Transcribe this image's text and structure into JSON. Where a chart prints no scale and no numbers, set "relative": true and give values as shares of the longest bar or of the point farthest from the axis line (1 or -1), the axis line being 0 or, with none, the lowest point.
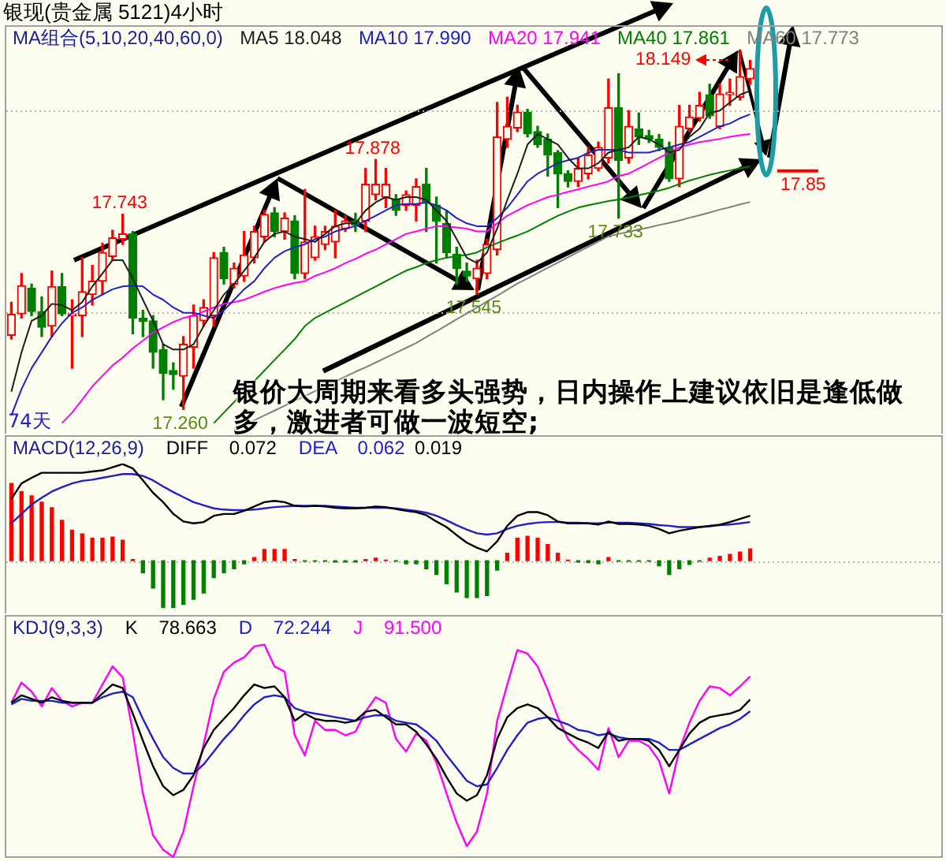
{
  "chart_data": [
    {
      "type": "candlestick",
      "title": "银现(贵金属 5121)4小时",
      "legend_title": "MA组合(5,10,20,40,60,0)",
      "legend": "top",
      "categories": [
        null,
        null,
        null,
        null,
        null,
        null,
        null,
        null,
        null,
        null,
        null,
        null,
        null,
        null,
        null,
        null,
        null,
        null,
        null,
        null,
        null,
        null,
        null,
        null,
        null,
        null,
        null,
        null,
        null,
        null,
        null,
        null,
        null,
        null,
        null,
        null,
        null,
        null,
        null,
        null,
        null,
        null,
        null,
        null,
        null,
        null,
        null,
        null,
        null,
        null,
        null,
        null,
        null,
        null,
        null,
        null,
        null,
        null,
        null,
        null,
        null,
        null,
        null,
        null,
        null,
        null,
        null,
        null,
        null,
        null,
        null,
        null,
        null,
        null
      ],
      "ohlc": [
        [
          17.443,
          17.525,
          17.434,
          17.495
        ],
        [
          17.496,
          17.596,
          17.486,
          17.566
        ],
        [
          17.56,
          17.57,
          17.492,
          17.502
        ],
        [
          17.502,
          17.538,
          17.44,
          17.463
        ],
        [
          17.466,
          17.602,
          17.44,
          17.564
        ],
        [
          17.564,
          17.596,
          17.492,
          17.496
        ],
        [
          17.492,
          17.531,
          17.362,
          17.496
        ],
        [
          17.492,
          17.635,
          17.44,
          17.551
        ],
        [
          17.544,
          17.616,
          17.518,
          17.577
        ],
        [
          17.577,
          17.671,
          17.544,
          17.648
        ],
        [
          17.638,
          17.703,
          17.629,
          17.684
        ],
        [
          17.681,
          17.743,
          17.668,
          17.694
        ],
        [
          17.694,
          17.7,
          17.447,
          17.486
        ],
        [
          17.486,
          17.505,
          17.44,
          17.477
        ],
        [
          17.479,
          17.492,
          17.362,
          17.401
        ],
        [
          17.408,
          17.421,
          17.284,
          17.349
        ],
        [
          17.356,
          17.375,
          17.31,
          17.346
        ],
        [
          17.342,
          17.44,
          17.26,
          17.421
        ],
        [
          17.414,
          17.518,
          17.362,
          17.492
        ],
        [
          17.479,
          17.531,
          17.466,
          17.512
        ],
        [
          17.492,
          17.648,
          17.466,
          17.635
        ],
        [
          17.648,
          17.661,
          17.57,
          17.583
        ],
        [
          17.57,
          17.622,
          17.56,
          17.609
        ],
        [
          17.59,
          17.7,
          17.577,
          17.642
        ],
        [
          17.635,
          17.713,
          17.622,
          17.7
        ],
        [
          17.687,
          17.752,
          17.674,
          17.742
        ],
        [
          17.746,
          17.759,
          17.687,
          17.7
        ],
        [
          17.7,
          17.746,
          17.681,
          17.733
        ],
        [
          17.726,
          17.739,
          17.583,
          17.596
        ],
        [
          17.596,
          17.804,
          17.583,
          17.674
        ],
        [
          17.635,
          17.713,
          17.629,
          17.687
        ],
        [
          17.668,
          17.713,
          17.655,
          17.7
        ],
        [
          17.674,
          17.752,
          17.635,
          17.713
        ],
        [
          17.707,
          17.739,
          17.7,
          17.726
        ],
        [
          17.726,
          17.745,
          17.7,
          17.716
        ],
        [
          17.726,
          17.856,
          17.7,
          17.817
        ],
        [
          17.791,
          17.878,
          17.778,
          17.817
        ],
        [
          17.785,
          17.856,
          17.759,
          17.817
        ],
        [
          17.778,
          17.791,
          17.74,
          17.752
        ],
        [
          17.765,
          17.8,
          17.752,
          17.791
        ],
        [
          17.765,
          17.83,
          17.726,
          17.811
        ],
        [
          17.817,
          17.856,
          17.7,
          17.772
        ],
        [
          17.765,
          17.785,
          17.622,
          17.726
        ],
        [
          17.72,
          17.752,
          17.635,
          17.648
        ],
        [
          17.644,
          17.661,
          17.57,
          17.609
        ],
        [
          17.602,
          17.622,
          17.577,
          17.59
        ],
        [
          17.583,
          17.629,
          17.545,
          17.609
        ],
        [
          17.596,
          17.681,
          17.583,
          17.668
        ],
        [
          17.655,
          18.019,
          17.642,
          17.934
        ],
        [
          17.928,
          18.032,
          17.908,
          17.96
        ],
        [
          17.956,
          18.012,
          17.947,
          17.995
        ],
        [
          17.995,
          18.002,
          17.934,
          17.941
        ],
        [
          17.947,
          17.96,
          17.908,
          17.915
        ],
        [
          17.928,
          17.941,
          17.837,
          17.889
        ],
        [
          17.895,
          17.9,
          17.759,
          17.843
        ],
        [
          17.843,
          17.85,
          17.81,
          17.824
        ],
        [
          17.824,
          17.882,
          17.811,
          17.856
        ],
        [
          17.843,
          17.908,
          17.83,
          17.889
        ],
        [
          17.856,
          17.921,
          17.85,
          17.908
        ],
        [
          17.882,
          18.077,
          17.869,
          18.006
        ],
        [
          18.006,
          18.09,
          17.733,
          17.876
        ],
        [
          17.882,
          17.999,
          17.869,
          17.96
        ],
        [
          17.954,
          17.993,
          17.915,
          17.934
        ],
        [
          17.937,
          17.95,
          17.92,
          17.928
        ],
        [
          17.928,
          17.94,
          17.9,
          17.908
        ],
        [
          17.908,
          17.921,
          17.824,
          17.83
        ],
        [
          17.83,
          18.012,
          17.811,
          17.96
        ],
        [
          17.954,
          18.012,
          17.947,
          17.983
        ],
        [
          17.98,
          18.044,
          17.973,
          18.012
        ],
        [
          18.038,
          18.064,
          17.98,
          17.986
        ],
        [
          17.96,
          18.064,
          17.954,
          18.04
        ],
        [
          18.038,
          18.077,
          18.012,
          18.044
        ],
        [
          18.032,
          18.149,
          18.025,
          18.083
        ],
        [
          18.077,
          18.123,
          18.064,
          18.103
        ]
      ],
      "colors": [
        "#ff0000",
        "#ff0000",
        "#008000",
        "#008000",
        "#ff0000",
        "#008000",
        "#ff0000",
        "#ff0000",
        "#ff0000",
        "#ff0000",
        "#ff0000",
        "#ff0000",
        "#008000",
        "#008000",
        "#008000",
        "#008000",
        "#008000",
        "#ff0000",
        "#ff0000",
        "#ff0000",
        "#ff0000",
        "#008000",
        "#ff0000",
        "#ff0000",
        "#ff0000",
        "#ff0000",
        "#008000",
        "#ff0000",
        "#008000",
        "#ff0000",
        "#ff0000",
        "#ff0000",
        "#ff0000",
        "#ff0000",
        "#008000",
        "#ff0000",
        "#ff0000",
        "#ff0000",
        "#008000",
        "#ff0000",
        "#ff0000",
        "#008000",
        "#008000",
        "#008000",
        "#008000",
        "#008000",
        "#ff0000",
        "#ff0000",
        "#ff0000",
        "#ff0000",
        "#ff0000",
        "#008000",
        "#008000",
        "#008000",
        "#008000",
        "#008000",
        "#ff0000",
        "#ff0000",
        "#ff0000",
        "#ff0000",
        "#008000",
        "#ff0000",
        "#008000",
        "#008000",
        "#008000",
        "#008000",
        "#ff0000",
        "#ff0000",
        "#ff0000",
        "#008000",
        "#ff0000",
        "#ff0000",
        "#ff0000",
        "#ff0000"
      ],
      "series": [
        {
          "name": "MA5 18.048",
          "type": "line",
          "color": "#1e1e1e",
          "values": [
            17.304,
            17.401,
            17.479,
            17.492,
            17.521,
            17.518,
            17.505,
            17.525,
            17.564,
            17.596,
            17.629,
            17.629,
            17.583,
            17.531,
            17.479,
            17.421,
            17.408,
            17.408,
            17.421,
            17.466,
            17.505,
            17.544,
            17.57,
            17.603,
            17.635,
            17.674,
            17.694,
            17.7,
            17.687,
            17.681,
            17.674,
            17.694,
            17.713,
            17.72,
            17.72,
            17.752,
            17.772,
            17.785,
            17.778,
            17.785,
            17.785,
            17.778,
            17.752,
            17.726,
            17.681,
            17.635,
            17.622,
            17.648,
            17.707,
            17.778,
            17.843,
            17.915,
            17.941,
            17.928,
            17.915,
            17.882,
            17.856,
            17.856,
            17.869,
            17.895,
            17.902,
            17.908,
            17.934,
            17.928,
            17.915,
            17.895,
            17.902,
            17.934,
            17.954,
            17.993,
            17.999,
            18.019,
            18.038,
            18.048
          ]
        },
        {
          "name": "MA10 17.990",
          "type": "line",
          "color": "#2020c8",
          "values": [
            17.245,
            17.31,
            17.362,
            17.401,
            17.44,
            17.473,
            17.499,
            17.512,
            17.531,
            17.544,
            17.557,
            17.564,
            17.566,
            17.564,
            17.544,
            17.531,
            17.512,
            17.499,
            17.499,
            17.492,
            17.486,
            17.505,
            17.531,
            17.557,
            17.577,
            17.609,
            17.635,
            17.651,
            17.661,
            17.668,
            17.681,
            17.687,
            17.7,
            17.707,
            17.713,
            17.726,
            17.739,
            17.752,
            17.765,
            17.768,
            17.768,
            17.772,
            17.765,
            17.752,
            17.733,
            17.72,
            17.713,
            17.713,
            17.733,
            17.759,
            17.791,
            17.824,
            17.843,
            17.856,
            17.869,
            17.876,
            17.882,
            17.895,
            17.902,
            17.902,
            17.902,
            17.895,
            17.895,
            17.895,
            17.902,
            17.908,
            17.915,
            17.921,
            17.934,
            17.947,
            17.96,
            17.967,
            17.98,
            17.99
          ]
        },
        {
          "name": "MA20 17.941",
          "type": "line",
          "color": "#ff00ff",
          "values": [
            null,
            null,
            null,
            null,
            null,
            17.226,
            17.252,
            17.284,
            17.317,
            17.343,
            17.369,
            17.388,
            17.411,
            17.43,
            17.45,
            17.463,
            17.476,
            17.486,
            17.492,
            17.502,
            17.512,
            17.521,
            17.525,
            17.531,
            17.541,
            17.551,
            17.56,
            17.567,
            17.573,
            17.577,
            17.59,
            17.599,
            17.609,
            17.622,
            17.632,
            17.645,
            17.655,
            17.668,
            17.681,
            17.694,
            17.7,
            17.707,
            17.713,
            17.713,
            17.71,
            17.707,
            17.7,
            17.7,
            17.72,
            17.739,
            17.752,
            17.765,
            17.775,
            17.785,
            17.791,
            17.798,
            17.804,
            17.811,
            17.817,
            17.824,
            17.837,
            17.843,
            17.856,
            17.869,
            17.882,
            17.895,
            17.908,
            17.915,
            17.921,
            17.925,
            17.929,
            17.934,
            17.938,
            17.941
          ]
        },
        {
          "name": "MA40 17.861",
          "type": "line",
          "color": "#008000",
          "values": [
            null,
            null,
            null,
            null,
            null,
            null,
            null,
            null,
            null,
            null,
            null,
            null,
            null,
            null,
            null,
            null,
            null,
            null,
            null,
            null,
            17.226,
            17.252,
            17.278,
            17.304,
            17.33,
            17.356,
            17.382,
            17.408,
            17.434,
            17.466,
            17.486,
            17.499,
            17.512,
            17.525,
            17.538,
            17.551,
            17.564,
            17.577,
            17.59,
            17.603,
            17.612,
            17.622,
            17.629,
            17.635,
            17.639,
            17.642,
            17.648,
            17.661,
            17.671,
            17.681,
            17.69,
            17.7,
            17.713,
            17.726,
            17.739,
            17.749,
            17.759,
            17.765,
            17.77,
            17.775,
            17.779,
            17.784,
            17.79,
            17.795,
            17.801,
            17.808,
            17.817,
            17.826,
            17.833,
            17.84,
            17.846,
            17.851,
            17.856,
            17.861
          ]
        },
        {
          "name": "MA60 17.773",
          "type": "line",
          "color": "#808080",
          "values": [
            null,
            null,
            null,
            null,
            null,
            null,
            null,
            null,
            null,
            null,
            null,
            null,
            null,
            null,
            null,
            null,
            null,
            null,
            null,
            null,
            null,
            null,
            17.209,
            17.221,
            17.233,
            17.245,
            17.257,
            17.269,
            17.281,
            17.293,
            17.305,
            17.317,
            17.329,
            17.341,
            17.353,
            17.364,
            17.376,
            17.388,
            17.4,
            17.412,
            17.424,
            17.439,
            17.453,
            17.468,
            17.483,
            17.497,
            17.512,
            17.527,
            17.541,
            17.556,
            17.571,
            17.584,
            17.597,
            17.61,
            17.623,
            17.636,
            17.649,
            17.662,
            17.675,
            17.688,
            17.694,
            17.699,
            17.705,
            17.71,
            17.716,
            17.721,
            17.727,
            17.734,
            17.74,
            17.747,
            17.754,
            17.76,
            17.767,
            17.773
          ]
        }
      ],
      "ylim": [
        17.2,
        18.21
      ],
      "yticks": [
        {
          "value": 17.5,
          "label": null
        },
        {
          "value": 18,
          "label": null
        }
      ],
      "grid": "y",
      "ref_lines": [
        {
          "axis": "y",
          "value": 17.85,
          "label": "17.85",
          "color": "#ff0000"
        }
      ],
      "annotations": [
        {
          "text": "17.743",
          "y": 17.743
        },
        {
          "text": "17.878",
          "y": 17.878
        },
        {
          "text": "17.260",
          "y": 17.26
        },
        {
          "text": "17.545",
          "y": 17.545
        },
        {
          "text": "17.733",
          "y": 17.733
        },
        "18.149",
        "银价大周期来看多头强势，日内操作上建议依旧是逢低做多，激进者可做一波短空;",
        "74天"
      ]
    },
    {
      "type": "bar",
      "relative": true,
      "legend_title": "MACD(12,26,9)",
      "legend": "top left",
      "categories": [
        null,
        null,
        null,
        null,
        null,
        null,
        null,
        null,
        null,
        null,
        null,
        null,
        null,
        null,
        null,
        null,
        null,
        null,
        null,
        null,
        null,
        null,
        null,
        null,
        null,
        null,
        null,
        null,
        null,
        null,
        null,
        null,
        null,
        null,
        null,
        null,
        null,
        null,
        null,
        null,
        null,
        null,
        null,
        null,
        null,
        null,
        null,
        null,
        null,
        null,
        null,
        null,
        null,
        null,
        null,
        null,
        null,
        null,
        null,
        null,
        null,
        null,
        null,
        null,
        null,
        null,
        null,
        null,
        null,
        null,
        null,
        null,
        null,
        null
      ],
      "series": [
        {
          "values": [
            0.8,
            0.716,
            0.671,
            0.606,
            0.548,
            0.419,
            0.316,
            0.277,
            0.232,
            0.232,
            0.245,
            0.213,
            0.013,
            -0.123,
            -0.284,
            -0.49,
            -0.49,
            -0.452,
            -0.4,
            -0.335,
            -0.174,
            -0.123,
            -0.084,
            -0.032,
            0.032,
            0.116,
            0.116,
            0.116,
            0.013,
            -0.006,
            -0.006,
            -0.006,
            -0.013,
            -0.013,
            -0.013,
            0.013,
            0.026,
            0.006,
            -0.006,
            -0.032,
            -0.032,
            -0.084,
            -0.142,
            -0.239,
            -0.323,
            -0.381,
            -0.381,
            -0.361,
            -0.097,
            0.077,
            0.232,
            0.252,
            0.232,
            0.168,
            0.077,
            0.006,
            -0.013,
            -0.019,
            -0.032,
            0.032,
            -0.006,
            -0.006,
            -0.006,
            -0.006,
            -0.052,
            -0.142,
            -0.084,
            -0.039,
            -0.006,
            0.026,
            0.045,
            0.065,
            0.09,
            0.123
          ],
          "colors": [
            "#ff0000",
            "#ff0000",
            "#ff0000",
            "#ff0000",
            "#ff0000",
            "#ff0000",
            "#ff0000",
            "#ff0000",
            "#ff0000",
            "#ff0000",
            "#ff0000",
            "#ff0000",
            "#ff0000",
            "#008000",
            "#008000",
            "#008000",
            "#008000",
            "#008000",
            "#008000",
            "#008000",
            "#008000",
            "#008000",
            "#008000",
            "#008000",
            "#ff0000",
            "#ff0000",
            "#ff0000",
            "#ff0000",
            "#ff0000",
            "#008000",
            "#008000",
            "#008000",
            "#008000",
            "#008000",
            "#008000",
            "#ff0000",
            "#ff0000",
            "#ff0000",
            "#008000",
            "#008000",
            "#008000",
            "#008000",
            "#008000",
            "#008000",
            "#008000",
            "#008000",
            "#008000",
            "#008000",
            "#008000",
            "#ff0000",
            "#ff0000",
            "#ff0000",
            "#ff0000",
            "#ff0000",
            "#ff0000",
            "#ff0000",
            "#008000",
            "#008000",
            "#008000",
            "#ff0000",
            "#008000",
            "#008000",
            "#008000",
            "#008000",
            "#008000",
            "#008000",
            "#008000",
            "#008000",
            "#008000",
            "#ff0000",
            "#ff0000",
            "#ff0000",
            "#ff0000",
            "#ff0000"
          ]
        },
        {
          "name": "DIFF 0.072",
          "type": "line",
          "color": "#000000",
          "values": [
            0.639,
            0.8,
            0.858,
            0.91,
            0.91,
            0.91,
            0.91,
            0.91,
            0.923,
            0.935,
            0.968,
            1,
            0.955,
            0.832,
            0.703,
            0.606,
            0.484,
            0.406,
            0.387,
            0.4,
            0.465,
            0.484,
            0.484,
            0.516,
            0.561,
            0.606,
            0.619,
            0.606,
            0.568,
            0.561,
            0.568,
            0.561,
            0.548,
            0.542,
            0.542,
            0.548,
            0.561,
            0.555,
            0.535,
            0.516,
            0.503,
            0.471,
            0.406,
            0.348,
            0.265,
            0.187,
            0.135,
            0.097,
            0.2,
            0.361,
            0.465,
            0.503,
            0.503,
            0.471,
            0.406,
            0.387,
            0.387,
            0.387,
            0.374,
            0.406,
            0.381,
            0.381,
            0.374,
            0.361,
            0.329,
            0.284,
            0.31,
            0.329,
            0.348,
            0.361,
            0.374,
            0.4,
            0.432,
            0.465
          ]
        },
        {
          "name": "DEA 0.062",
          "type": "line",
          "color": "#2020c8",
          "values": [
            0.387,
            0.484,
            0.581,
            0.652,
            0.716,
            0.761,
            0.8,
            0.826,
            0.839,
            0.858,
            0.877,
            0.897,
            0.897,
            0.877,
            0.832,
            0.768,
            0.71,
            0.658,
            0.606,
            0.574,
            0.542,
            0.529,
            0.523,
            0.523,
            0.529,
            0.542,
            0.555,
            0.561,
            0.568,
            0.568,
            0.568,
            0.568,
            0.561,
            0.555,
            0.548,
            0.548,
            0.548,
            0.548,
            0.542,
            0.529,
            0.516,
            0.497,
            0.465,
            0.419,
            0.368,
            0.323,
            0.284,
            0.271,
            0.284,
            0.329,
            0.361,
            0.381,
            0.394,
            0.4,
            0.4,
            0.394,
            0.394,
            0.387,
            0.387,
            0.394,
            0.394,
            0.394,
            0.387,
            0.381,
            0.368,
            0.361,
            0.348,
            0.348,
            0.348,
            0.355,
            0.368,
            0.374,
            0.387,
            0.4
          ]
        }
      ],
      "ref_lines": [
        {
          "axis": "y",
          "value": 0,
          "color": "#b4b4b4",
          "line_style": "dotted"
        }
      ],
      "annotations": [
        "0.019"
      ]
    },
    {
      "type": "line",
      "relative": true,
      "legend_title": "KDJ(9,3,3)",
      "legend": "top left",
      "categories": [
        null,
        null,
        null,
        null,
        null,
        null,
        null,
        null,
        null,
        null,
        null,
        null,
        null,
        null,
        null,
        null,
        null,
        null,
        null,
        null,
        null,
        null,
        null,
        null,
        null,
        null,
        null,
        null,
        null,
        null,
        null,
        null,
        null,
        null,
        null,
        null,
        null,
        null,
        null,
        null,
        null,
        null,
        null,
        null,
        null,
        null,
        null,
        null,
        null,
        null,
        null,
        null,
        null,
        null,
        null,
        null,
        null,
        null,
        null,
        null,
        null,
        null,
        null,
        null,
        null,
        null,
        null,
        null,
        null,
        null,
        null,
        null,
        null,
        null
      ],
      "series": [
        {
          "name": "K 78.663",
          "color": "#000000",
          "values": [
            0.726,
            0.761,
            0.744,
            0.726,
            0.752,
            0.735,
            0.726,
            0.726,
            0.726,
            0.769,
            0.812,
            0.795,
            0.675,
            0.547,
            0.427,
            0.333,
            0.291,
            0.316,
            0.385,
            0.513,
            0.598,
            0.65,
            0.701,
            0.761,
            0.812,
            0.795,
            0.803,
            0.752,
            0.641,
            0.675,
            0.65,
            0.641,
            0.641,
            0.632,
            0.641,
            0.684,
            0.692,
            0.658,
            0.624,
            0.624,
            0.59,
            0.53,
            0.462,
            0.376,
            0.299,
            0.265,
            0.291,
            0.385,
            0.556,
            0.658,
            0.701,
            0.718,
            0.701,
            0.658,
            0.607,
            0.581,
            0.556,
            0.538,
            0.513,
            0.59,
            0.547,
            0.556,
            0.556,
            0.547,
            0.504,
            0.427,
            0.504,
            0.581,
            0.632,
            0.658,
            0.667,
            0.675,
            0.692,
            0.741
          ]
        },
        {
          "name": "D 72.244",
          "color": "#2020c8",
          "values": [
            0.718,
            0.744,
            0.735,
            0.735,
            0.735,
            0.726,
            0.726,
            0.726,
            0.726,
            0.752,
            0.769,
            0.778,
            0.752,
            0.65,
            0.556,
            0.47,
            0.419,
            0.393,
            0.393,
            0.436,
            0.496,
            0.556,
            0.607,
            0.667,
            0.718,
            0.752,
            0.761,
            0.752,
            0.701,
            0.684,
            0.675,
            0.667,
            0.658,
            0.65,
            0.641,
            0.658,
            0.667,
            0.667,
            0.641,
            0.632,
            0.624,
            0.59,
            0.547,
            0.479,
            0.419,
            0.359,
            0.333,
            0.342,
            0.419,
            0.504,
            0.573,
            0.632,
            0.65,
            0.658,
            0.641,
            0.624,
            0.598,
            0.59,
            0.573,
            0.581,
            0.564,
            0.556,
            0.556,
            0.556,
            0.538,
            0.504,
            0.504,
            0.53,
            0.556,
            0.581,
            0.607,
            0.624,
            0.65,
            0.686
          ]
        },
        {
          "name": "J 91.500",
          "color": "#ff00ff",
          "values": [
            0.726,
            0.821,
            0.778,
            0.709,
            0.795,
            0.735,
            0.709,
            0.726,
            0.726,
            0.812,
            0.897,
            0.846,
            0.59,
            0.299,
            0.103,
            0.034,
            0,
            0.12,
            0.333,
            0.53,
            0.744,
            0.872,
            0.915,
            0.94,
            0.991,
            1,
            0.897,
            0.872,
            0.573,
            0.479,
            0.641,
            0.598,
            0.598,
            0.573,
            0.59,
            0.684,
            0.752,
            0.726,
            0.556,
            0.496,
            0.581,
            0.547,
            0.444,
            0.299,
            0.162,
            0.051,
            0.12,
            0.299,
            0.641,
            0.812,
            0.974,
            0.957,
            0.897,
            0.786,
            0.658,
            0.556,
            0.504,
            0.462,
            0.41,
            0.607,
            0.47,
            0.547,
            0.547,
            0.521,
            0.453,
            0.299,
            0.504,
            0.632,
            0.735,
            0.803,
            0.795,
            0.761,
            0.803,
            0.85
          ]
        }
      ]
    }
  ]
}
